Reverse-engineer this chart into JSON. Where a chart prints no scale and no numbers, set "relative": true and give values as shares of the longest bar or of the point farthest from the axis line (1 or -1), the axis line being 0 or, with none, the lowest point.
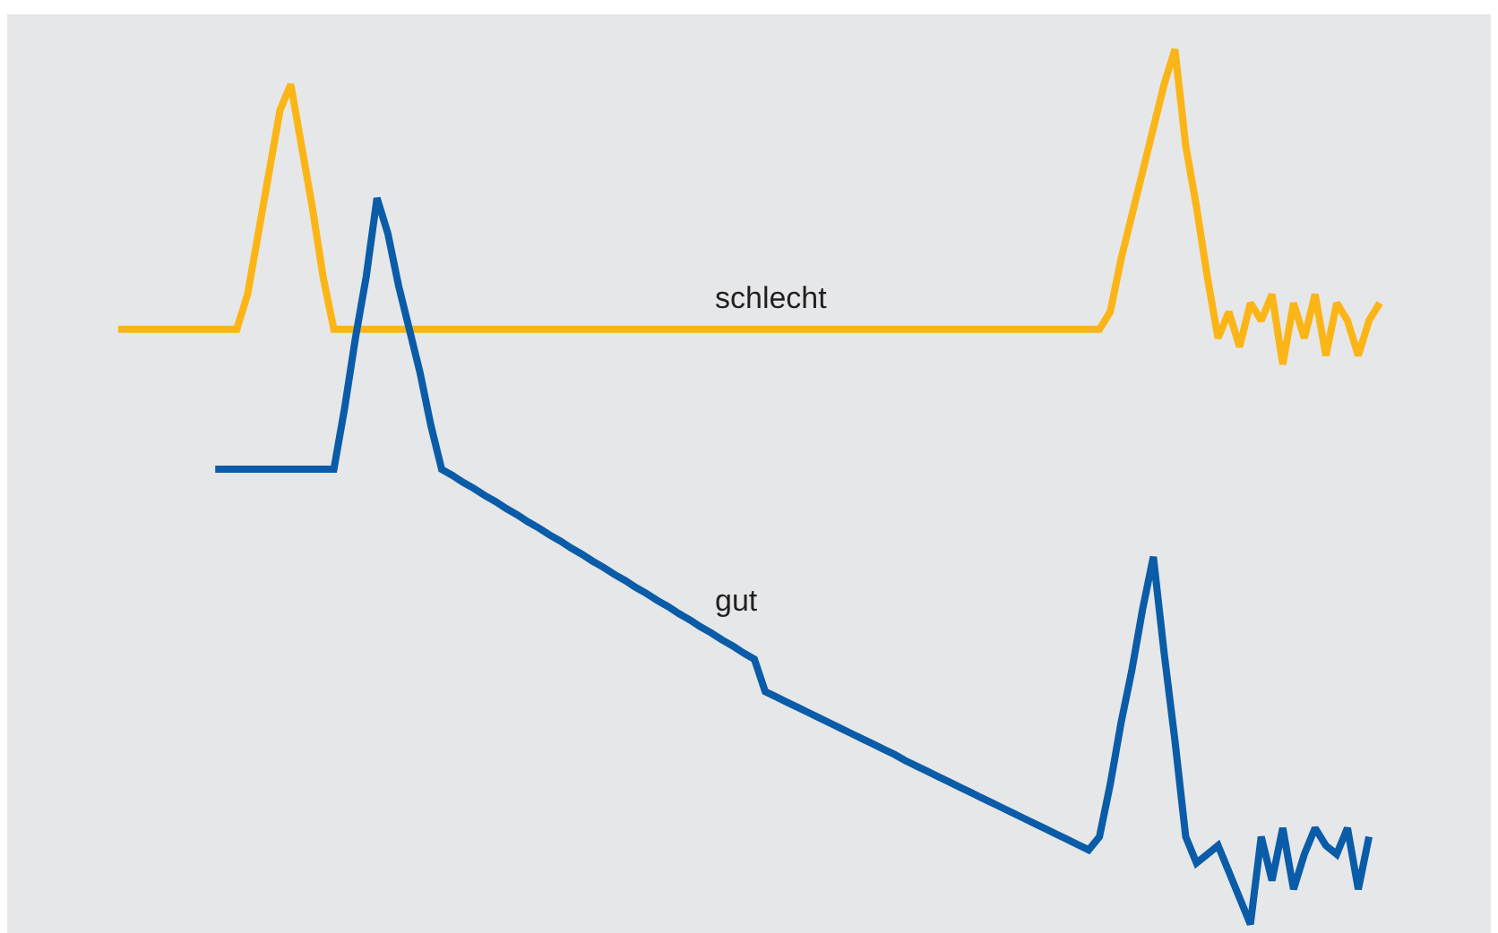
{
  "chart_data": {
    "type": "line",
    "relative": true,
    "legend": false,
    "marker": "none",
    "line_style": "solid",
    "categories": [
      null,
      null,
      null,
      null,
      null,
      null,
      null,
      null,
      null,
      null,
      null,
      null,
      null,
      null,
      null,
      null,
      null,
      null,
      null,
      null,
      null,
      null,
      null,
      null,
      null,
      null,
      null,
      null,
      null,
      null,
      null,
      null,
      null,
      null,
      null,
      null,
      null,
      null,
      null,
      null,
      null,
      null,
      null,
      null,
      null,
      null,
      null,
      null,
      null,
      null,
      null,
      null,
      null,
      null,
      null,
      null,
      null,
      null,
      null,
      null,
      null,
      null,
      null,
      null,
      null,
      null,
      null,
      null,
      null,
      null,
      null,
      null,
      null,
      null,
      null,
      null,
      null,
      null,
      null,
      null,
      null,
      null,
      null,
      null,
      null,
      null,
      null,
      null,
      null,
      null,
      null,
      null,
      null,
      null,
      null,
      null,
      null,
      null,
      null,
      null,
      null,
      null,
      null,
      null,
      null,
      null,
      null,
      null,
      null,
      null,
      null,
      null,
      null,
      null,
      null,
      null,
      null,
      null
    ],
    "series": [
      {
        "name": "schlecht",
        "color": "#fbb516",
        "values": [
          0.68,
          0.68,
          0.68,
          0.68,
          0.68,
          0.68,
          0.68,
          0.68,
          0.68,
          0.68,
          0.68,
          0.68,
          0.72,
          0.79,
          0.86,
          0.93,
          0.96,
          0.89,
          0.82,
          0.74,
          0.68,
          0.68,
          0.68,
          0.68,
          0.68,
          0.68,
          0.68,
          0.68,
          0.68,
          0.68,
          0.68,
          0.68,
          0.68,
          0.68,
          0.68,
          0.68,
          0.68,
          0.68,
          0.68,
          0.68,
          0.68,
          0.68,
          0.68,
          0.68,
          0.68,
          0.68,
          0.68,
          0.68,
          0.68,
          0.68,
          0.68,
          0.68,
          0.68,
          0.68,
          0.68,
          0.68,
          0.68,
          0.68,
          0.68,
          0.68,
          0.68,
          0.68,
          0.68,
          0.68,
          0.68,
          0.68,
          0.68,
          0.68,
          0.68,
          0.68,
          0.68,
          0.68,
          0.68,
          0.68,
          0.68,
          0.68,
          0.68,
          0.68,
          0.68,
          0.68,
          0.68,
          0.68,
          0.68,
          0.68,
          0.68,
          0.68,
          0.68,
          0.68,
          0.68,
          0.68,
          0.68,
          0.68,
          0.7,
          0.76,
          0.81,
          0.86,
          0.91,
          0.96,
          1.0,
          0.89,
          0.82,
          0.74,
          0.67,
          0.7,
          0.66,
          0.71,
          0.69,
          0.72,
          0.64,
          0.71,
          0.67,
          0.72,
          0.65,
          0.71,
          0.69,
          0.65,
          0.69,
          0.71
        ]
      },
      {
        "name": "gut",
        "color": "#0a5ca8",
        "values": [
          null,
          null,
          null,
          null,
          null,
          null,
          null,
          null,
          null,
          0.52,
          0.52,
          0.52,
          0.52,
          0.52,
          0.52,
          0.52,
          0.52,
          0.52,
          0.52,
          0.52,
          0.52,
          0.59,
          0.67,
          0.74,
          0.83,
          0.79,
          0.73,
          0.68,
          0.63,
          0.57,
          0.52,
          0.513,
          0.505,
          0.498,
          0.49,
          0.483,
          0.475,
          0.468,
          0.46,
          0.453,
          0.445,
          0.438,
          0.43,
          0.423,
          0.415,
          0.408,
          0.4,
          0.393,
          0.385,
          0.378,
          0.37,
          0.363,
          0.355,
          0.348,
          0.34,
          0.333,
          0.325,
          0.318,
          0.31,
          0.303,
          0.266,
          0.26,
          0.254,
          0.248,
          0.242,
          0.236,
          0.23,
          0.224,
          0.218,
          0.212,
          0.206,
          0.2,
          0.194,
          0.187,
          0.181,
          0.175,
          0.169,
          0.163,
          0.157,
          0.151,
          0.145,
          0.139,
          0.133,
          0.127,
          0.121,
          0.115,
          0.109,
          0.103,
          0.097,
          0.091,
          0.085,
          0.1,
          0.16,
          0.23,
          0.29,
          0.36,
          0.42,
          0.31,
          0.21,
          0.1,
          0.07,
          0.08,
          0.09,
          0.06,
          0.03,
          0,
          0.1,
          0.05,
          0.11,
          0.04,
          0.08,
          0.11,
          0.09,
          0.08,
          0.11,
          0.04,
          0.1,
          null
        ]
      }
    ]
  }
}
